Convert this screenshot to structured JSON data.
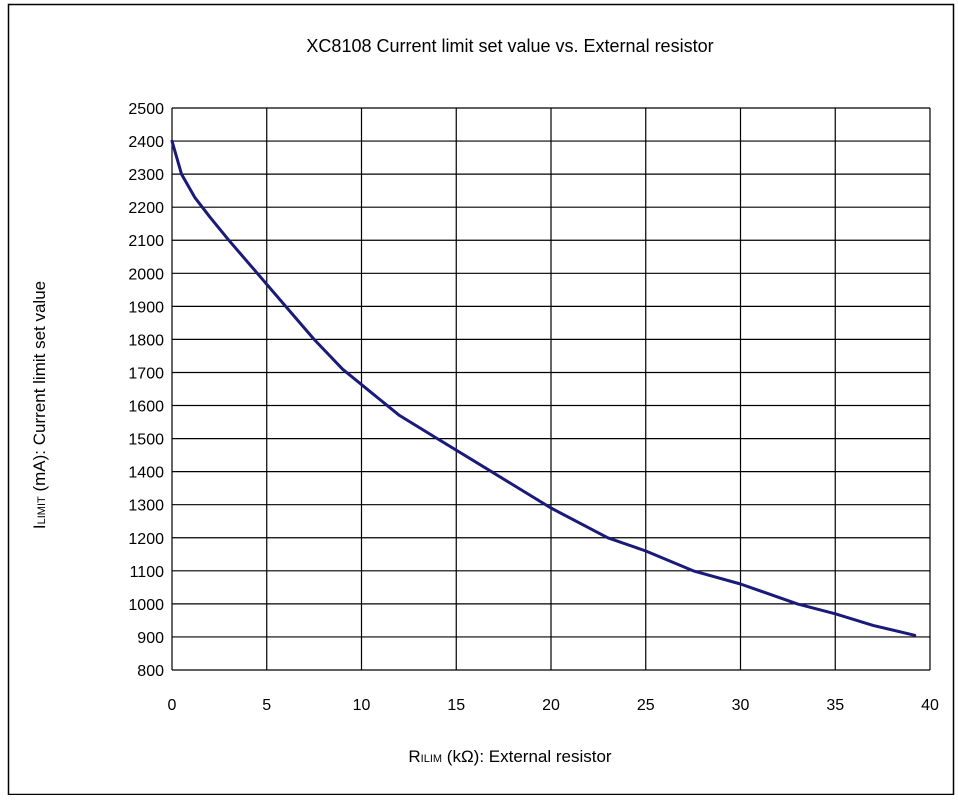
{
  "chart_data": {
    "type": "line",
    "title": "XC8108  Current  limit  set  value  vs.  External  resistor",
    "xlabel": {
      "main": "R",
      "sub": "ILIM",
      "rest": " (kΩ): External resistor"
    },
    "ylabel": {
      "main": "I",
      "sub": "LIMIT",
      "rest": " (mA): Current limit set value"
    },
    "xlim": [
      0,
      40
    ],
    "ylim": [
      800,
      2500
    ],
    "x_ticks": [
      0,
      5,
      10,
      15,
      20,
      25,
      30,
      35,
      40
    ],
    "y_ticks": [
      800,
      900,
      1000,
      1100,
      1200,
      1300,
      1400,
      1500,
      1600,
      1700,
      1800,
      1900,
      2000,
      2100,
      2200,
      2300,
      2400,
      2500
    ],
    "grid": true,
    "legend": "none",
    "series": [
      {
        "color": "#1a1a7a",
        "points": [
          [
            0,
            2400
          ],
          [
            0.5,
            2300
          ],
          [
            1.2,
            2230
          ],
          [
            2,
            2170
          ],
          [
            3,
            2100
          ],
          [
            4.5,
            2000
          ],
          [
            6,
            1900
          ],
          [
            7.5,
            1800
          ],
          [
            9,
            1710
          ],
          [
            10.5,
            1640
          ],
          [
            12,
            1570
          ],
          [
            14,
            1500
          ],
          [
            16,
            1430
          ],
          [
            18,
            1360
          ],
          [
            20,
            1290
          ],
          [
            23,
            1200
          ],
          [
            25,
            1160
          ],
          [
            27.5,
            1100
          ],
          [
            30,
            1060
          ],
          [
            33,
            1000
          ],
          [
            35,
            970
          ],
          [
            37,
            935
          ],
          [
            39.2,
            905
          ]
        ]
      }
    ]
  }
}
